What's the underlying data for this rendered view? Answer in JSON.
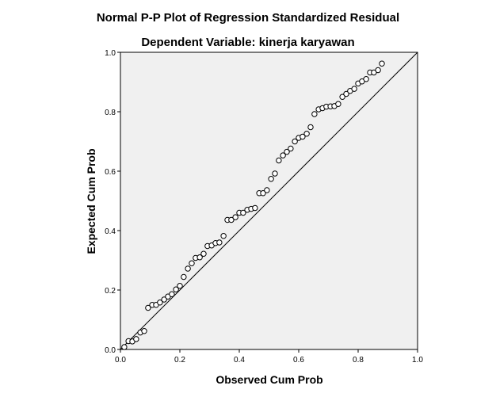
{
  "chart_data": {
    "type": "scatter",
    "title": "Normal P-P Plot of Regression Standardized Residual",
    "subtitle": "Dependent Variable: kinerja karyawan",
    "xlabel": "Observed Cum Prob",
    "ylabel": "Expected Cum Prob",
    "xlim": [
      0,
      1
    ],
    "ylim": [
      0,
      1
    ],
    "xticks": [
      "0.0",
      "0.2",
      "0.4",
      "0.6",
      "0.8",
      "1.0"
    ],
    "yticks": [
      "0.0",
      "0.2",
      "0.4",
      "0.6",
      "0.8",
      "1.0"
    ],
    "reference_line": [
      [
        0,
        0
      ],
      [
        1,
        1
      ]
    ],
    "grid": false,
    "colors": {
      "plot_background": "#f0f0f0",
      "marker_stroke": "#000000",
      "marker_fill": "#ffffff",
      "line": "#000000"
    },
    "points": [
      [
        0.013,
        0.008
      ],
      [
        0.027,
        0.028
      ],
      [
        0.04,
        0.027
      ],
      [
        0.053,
        0.035
      ],
      [
        0.067,
        0.057
      ],
      [
        0.08,
        0.062
      ],
      [
        0.093,
        0.14
      ],
      [
        0.107,
        0.15
      ],
      [
        0.12,
        0.15
      ],
      [
        0.133,
        0.158
      ],
      [
        0.147,
        0.168
      ],
      [
        0.16,
        0.178
      ],
      [
        0.173,
        0.186
      ],
      [
        0.187,
        0.202
      ],
      [
        0.2,
        0.214
      ],
      [
        0.213,
        0.244
      ],
      [
        0.227,
        0.272
      ],
      [
        0.24,
        0.29
      ],
      [
        0.253,
        0.308
      ],
      [
        0.267,
        0.31
      ],
      [
        0.28,
        0.322
      ],
      [
        0.293,
        0.348
      ],
      [
        0.307,
        0.35
      ],
      [
        0.32,
        0.358
      ],
      [
        0.333,
        0.36
      ],
      [
        0.347,
        0.382
      ],
      [
        0.36,
        0.436
      ],
      [
        0.373,
        0.436
      ],
      [
        0.387,
        0.445
      ],
      [
        0.4,
        0.46
      ],
      [
        0.413,
        0.46
      ],
      [
        0.427,
        0.47
      ],
      [
        0.44,
        0.473
      ],
      [
        0.453,
        0.476
      ],
      [
        0.467,
        0.526
      ],
      [
        0.48,
        0.526
      ],
      [
        0.493,
        0.536
      ],
      [
        0.507,
        0.574
      ],
      [
        0.52,
        0.592
      ],
      [
        0.533,
        0.636
      ],
      [
        0.547,
        0.653
      ],
      [
        0.56,
        0.665
      ],
      [
        0.573,
        0.676
      ],
      [
        0.587,
        0.7
      ],
      [
        0.6,
        0.712
      ],
      [
        0.613,
        0.716
      ],
      [
        0.627,
        0.726
      ],
      [
        0.64,
        0.748
      ],
      [
        0.653,
        0.792
      ],
      [
        0.667,
        0.808
      ],
      [
        0.68,
        0.812
      ],
      [
        0.693,
        0.817
      ],
      [
        0.707,
        0.818
      ],
      [
        0.72,
        0.819
      ],
      [
        0.733,
        0.826
      ],
      [
        0.747,
        0.85
      ],
      [
        0.76,
        0.86
      ],
      [
        0.773,
        0.87
      ],
      [
        0.787,
        0.877
      ],
      [
        0.8,
        0.895
      ],
      [
        0.813,
        0.902
      ],
      [
        0.827,
        0.91
      ],
      [
        0.84,
        0.932
      ],
      [
        0.853,
        0.932
      ],
      [
        0.867,
        0.94
      ],
      [
        0.88,
        0.962
      ]
    ]
  }
}
